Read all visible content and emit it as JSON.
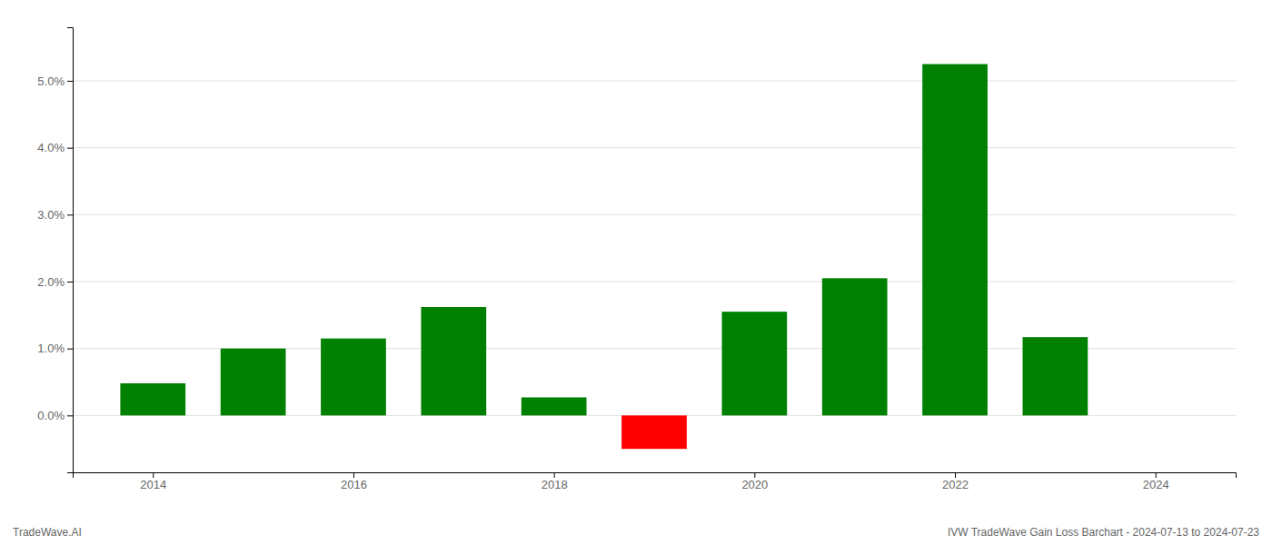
{
  "chart_data": {
    "type": "bar",
    "x": [
      2014,
      2015,
      2016,
      2017,
      2018,
      2019,
      2020,
      2021,
      2022,
      2023
    ],
    "values": [
      0.0048,
      0.01,
      0.0115,
      0.0162,
      0.0027,
      -0.005,
      0.0155,
      0.0205,
      0.0525,
      0.0117
    ],
    "colors": [
      "#008000",
      "#008000",
      "#008000",
      "#008000",
      "#008000",
      "#ff0000",
      "#008000",
      "#008000",
      "#008000",
      "#008000"
    ],
    "xlim": [
      2013.2,
      2024.8
    ],
    "xticks": [
      2014,
      2016,
      2018,
      2020,
      2022,
      2024
    ],
    "ylim": [
      -0.0085,
      0.058
    ],
    "yticks": [
      {
        "value": 0,
        "label": "0.0%"
      },
      {
        "value": 0.01,
        "label": "1.0%"
      },
      {
        "value": 0.02,
        "label": "2.0%"
      },
      {
        "value": 0.03,
        "label": "3.0%"
      },
      {
        "value": 0.04,
        "label": "4.0%"
      },
      {
        "value": 0.05,
        "label": "5.0%"
      }
    ],
    "grid": true,
    "annotations": [
      "TradeWave.AI",
      "IVW TradeWave Gain Loss Barchart - 2024-07-13 to 2024-07-23"
    ]
  }
}
